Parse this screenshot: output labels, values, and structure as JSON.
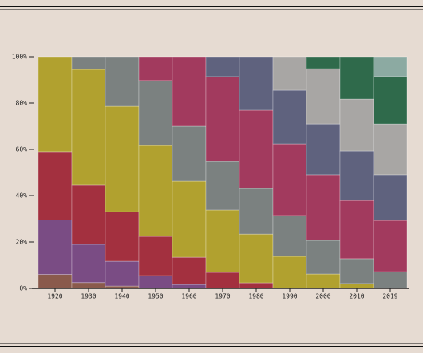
{
  "chart_data": {
    "type": "stacked_bar_100",
    "categories": [
      "1920",
      "1930",
      "1940",
      "1950",
      "1960",
      "1970",
      "1980",
      "1990",
      "2000",
      "2010",
      "2019"
    ],
    "series": [
      {
        "color": "#8a5a4c",
        "values": [
          6,
          2.5,
          1,
          0,
          0,
          0,
          0,
          0,
          0,
          0,
          0
        ]
      },
      {
        "color": "#7a4c84",
        "values": [
          23.5,
          16.5,
          10.7,
          5.5,
          1.7,
          0,
          0,
          0,
          0,
          0,
          0
        ]
      },
      {
        "color": "#a3303f",
        "values": [
          29.5,
          25.5,
          21.3,
          16.9,
          11.7,
          6.9,
          2.4,
          0,
          0,
          0,
          0
        ]
      },
      {
        "color": "#b1a12f",
        "values": [
          41,
          50,
          45.6,
          39.3,
          32.8,
          26.9,
          21,
          13.8,
          6.2,
          2.1,
          0
        ]
      },
      {
        "color": "#7b8180",
        "values": [
          0,
          5.5,
          21.4,
          28,
          23.8,
          21,
          19.7,
          17.6,
          14.5,
          10.7,
          7.2
        ]
      },
      {
        "color": "#a23a5e",
        "values": [
          0,
          0,
          0,
          10.3,
          30,
          36.6,
          33.8,
          31,
          28.3,
          25.1,
          22.1
        ]
      },
      {
        "color": "#5f627e",
        "values": [
          0,
          0,
          0,
          0,
          0,
          8.6,
          23.1,
          23.1,
          22,
          21.4,
          19.7
        ]
      },
      {
        "color": "#a8a6a4",
        "values": [
          0,
          0,
          0,
          0,
          0,
          0,
          0,
          14.5,
          23.8,
          22.4,
          22
        ]
      },
      {
        "color": "#2f6a4b",
        "values": [
          0,
          0,
          0,
          0,
          0,
          0,
          0,
          0,
          5.2,
          18.3,
          20.4
        ]
      },
      {
        "color": "#8caaa2",
        "values": [
          0,
          0,
          0,
          0,
          0,
          0,
          0,
          0,
          0,
          0,
          8.6
        ]
      }
    ],
    "ylim": [
      0,
      100
    ],
    "yticks": [
      {
        "value": 0,
        "label": "0%"
      },
      {
        "value": 20,
        "label": "20%"
      },
      {
        "value": 40,
        "label": "40%"
      },
      {
        "value": 60,
        "label": "60%"
      },
      {
        "value": 80,
        "label": "80%"
      },
      {
        "value": 100,
        "label": "100%"
      }
    ]
  }
}
